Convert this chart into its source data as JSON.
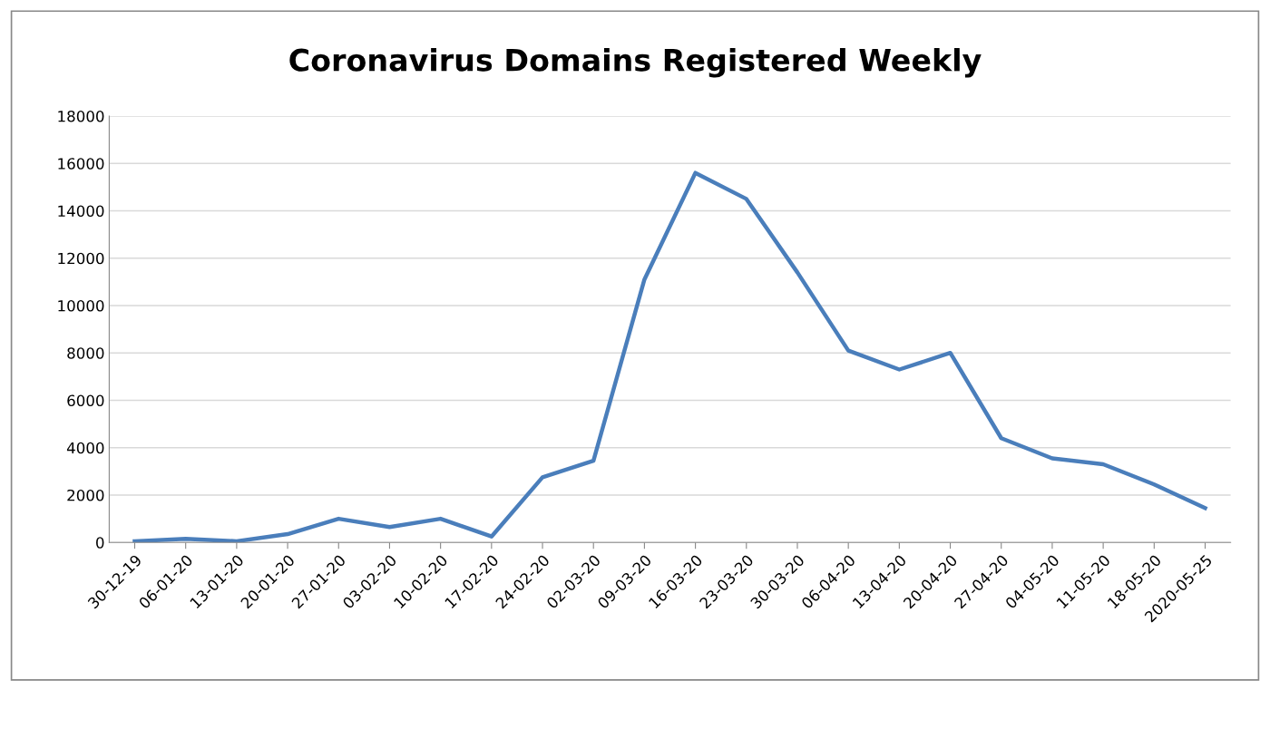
{
  "chart_data": {
    "type": "line",
    "title": "Coronavirus Domains Registered Weekly",
    "categories": [
      "30-12-19",
      "06-01-20",
      "13-01-20",
      "20-01-20",
      "27-01-20",
      "03-02-20",
      "10-02-20",
      "17-02-20",
      "24-02-20",
      "02-03-20",
      "09-03-20",
      "16-03-20",
      "23-03-20",
      "30-03-20",
      "06-04-20",
      "13-04-20",
      "20-04-20",
      "27-04-20",
      "04-05-20",
      "11-05-20",
      "18-05-20",
      "2020-05-25"
    ],
    "series": [
      {
        "color": "#4a7ebb",
        "values": [
          50,
          150,
          50,
          350,
          1000,
          650,
          1000,
          250,
          2750,
          3450,
          11100,
          15600,
          14500,
          11400,
          8100,
          7300,
          8000,
          4400,
          3550,
          3300,
          2450,
          1450
        ]
      }
    ],
    "ylim": [
      0,
      18000
    ],
    "yticks": [
      0,
      2000,
      4000,
      6000,
      8000,
      10000,
      12000,
      14000,
      16000,
      18000
    ],
    "grid": "y",
    "legend": false,
    "marker": "none",
    "line_style": "solid"
  }
}
